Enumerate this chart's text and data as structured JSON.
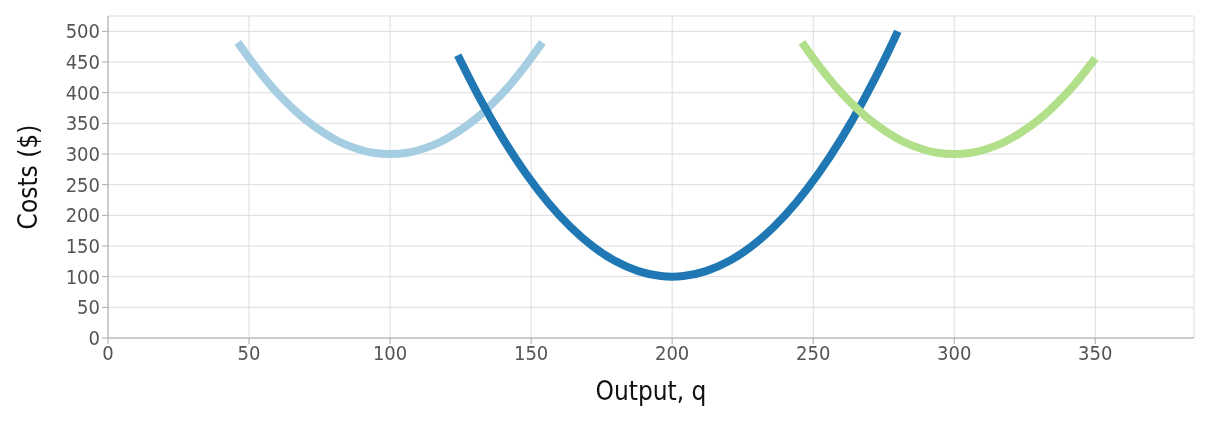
{
  "chart_data": {
    "type": "line",
    "xlabel": "Output, q",
    "ylabel": "Costs ($)",
    "xlim": [
      0,
      385
    ],
    "ylim": [
      0,
      525
    ],
    "xticks": [
      0,
      50,
      100,
      150,
      200,
      250,
      300,
      350
    ],
    "yticks": [
      0,
      50,
      100,
      150,
      200,
      250,
      300,
      350,
      400,
      450,
      500
    ],
    "grid": true,
    "marker": "none",
    "line_style": "solid",
    "series": [
      {
        "color": "#a6cee3",
        "x": [
          46,
          52,
          58,
          64,
          70,
          76,
          82,
          88,
          94,
          100,
          106,
          112,
          118,
          124,
          130,
          136,
          142,
          148,
          154
        ],
        "values": [
          482,
          444,
          410,
          381,
          356,
          336,
          320,
          309,
          302,
          300,
          302,
          309,
          320,
          336,
          356,
          381,
          410,
          444,
          482
        ]
      },
      {
        "color": "#1f78b4",
        "x": [
          124,
          132,
          140,
          148,
          156,
          164,
          172,
          180,
          188,
          196,
          200,
          204,
          212,
          220,
          228,
          236,
          244,
          252,
          260,
          268,
          276,
          280
        ],
        "values": [
          461,
          389,
          325,
          269,
          221,
          181,
          149,
          125,
          109,
          101,
          100,
          101,
          109,
          125,
          149,
          181,
          221,
          269,
          325,
          389,
          461,
          500
        ]
      },
      {
        "color": "#b2df8a",
        "x": [
          246,
          252,
          258,
          264,
          270,
          276,
          282,
          288,
          294,
          300,
          306,
          312,
          318,
          324,
          330,
          336,
          342,
          348,
          350
        ],
        "values": [
          482,
          444,
          410,
          381,
          356,
          336,
          320,
          309,
          302,
          300,
          302,
          309,
          320,
          336,
          356,
          381,
          410,
          444,
          456
        ]
      }
    ]
  }
}
